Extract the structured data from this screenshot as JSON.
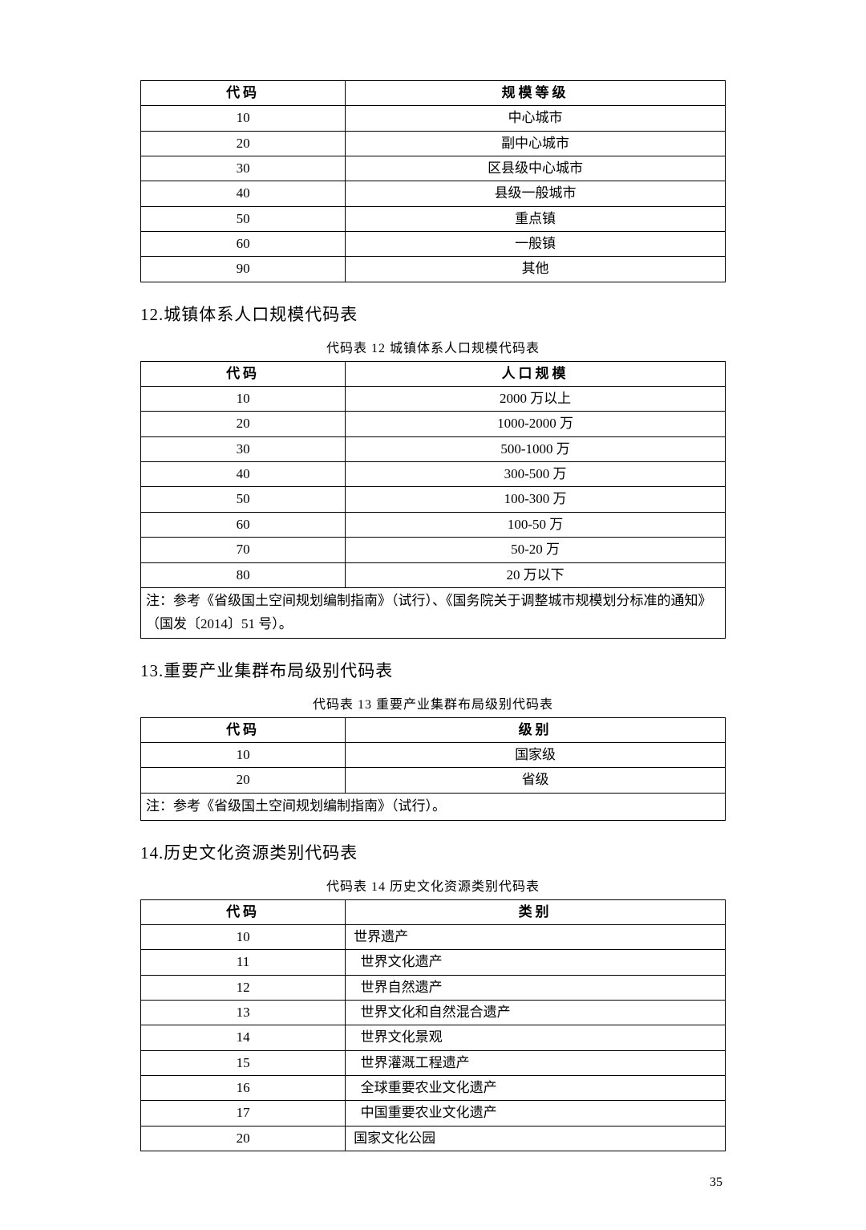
{
  "page_number": "35",
  "table11": {
    "columns": [
      "代码",
      "规模等级"
    ],
    "rows": [
      [
        "10",
        "中心城市"
      ],
      [
        "20",
        "副中心城市"
      ],
      [
        "30",
        "区县级中心城市"
      ],
      [
        "40",
        "县级一般城市"
      ],
      [
        "50",
        "重点镇"
      ],
      [
        "60",
        "一般镇"
      ],
      [
        "90",
        "其他"
      ]
    ]
  },
  "section12": {
    "title": "12.城镇体系人口规模代码表",
    "caption": "代码表 12 城镇体系人口规模代码表",
    "columns": [
      "代码",
      "人口规模"
    ],
    "rows": [
      [
        "10",
        "2000 万以上"
      ],
      [
        "20",
        "1000-2000 万"
      ],
      [
        "30",
        "500-1000 万"
      ],
      [
        "40",
        "300-500 万"
      ],
      [
        "50",
        "100-300 万"
      ],
      [
        "60",
        "100-50 万"
      ],
      [
        "70",
        "50-20 万"
      ],
      [
        "80",
        "20 万以下"
      ]
    ],
    "note": "注：参考《省级国土空间规划编制指南》（试行）、《国务院关于调整城市规模划分标准的通知》（国发〔2014〕51 号）。"
  },
  "section13": {
    "title": "13.重要产业集群布局级别代码表",
    "caption": "代码表 13 重要产业集群布局级别代码表",
    "columns": [
      "代码",
      "级别"
    ],
    "rows": [
      [
        "10",
        "国家级"
      ],
      [
        "20",
        "省级"
      ]
    ],
    "note": "注：参考《省级国土空间规划编制指南》（试行）。"
  },
  "section14": {
    "title": "14.历史文化资源类别代码表",
    "caption": "代码表 14 历史文化资源类别代码表",
    "columns": [
      "代码",
      "类别"
    ],
    "rows": [
      [
        "10",
        "世界遗产"
      ],
      [
        "11",
        "  世界文化遗产"
      ],
      [
        "12",
        "  世界自然遗产"
      ],
      [
        "13",
        "  世界文化和自然混合遗产"
      ],
      [
        "14",
        "  世界文化景观"
      ],
      [
        "15",
        "  世界灌溉工程遗产"
      ],
      [
        "16",
        "  全球重要农业文化遗产"
      ],
      [
        "17",
        "  中国重要农业文化遗产"
      ],
      [
        "20",
        "国家文化公园"
      ]
    ]
  }
}
